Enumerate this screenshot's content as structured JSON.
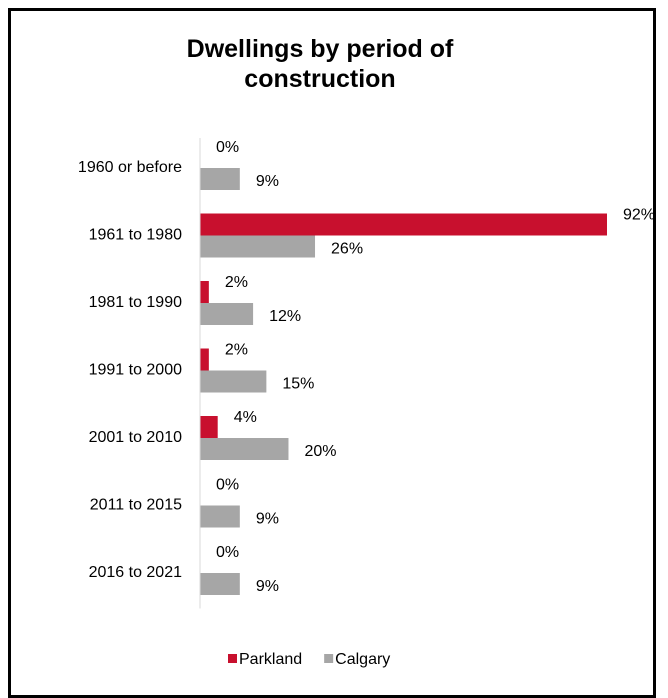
{
  "chart_data": {
    "type": "barh",
    "title": "Dwellings by period of construction",
    "categories": [
      "1960 or before",
      "1961 to 1980",
      "1981 to 1990",
      "1991 to 2000",
      "2001 to 2010",
      "2011 to 2015",
      "2016 to 2021"
    ],
    "series": [
      {
        "name": "Parkland",
        "color": "#c8102e",
        "values": [
          0,
          92,
          2,
          2,
          4,
          0,
          0
        ],
        "value_labels": [
          "0%",
          "92%",
          "2%",
          "2%",
          "4%",
          "0%",
          "0%"
        ]
      },
      {
        "name": "Calgary",
        "color": "#a6a6a6",
        "values": [
          9,
          26,
          12,
          15,
          20,
          9,
          9
        ],
        "value_labels": [
          "9%",
          "26%",
          "12%",
          "15%",
          "20%",
          "9%",
          "9%"
        ]
      }
    ],
    "legend": "bottom"
  }
}
